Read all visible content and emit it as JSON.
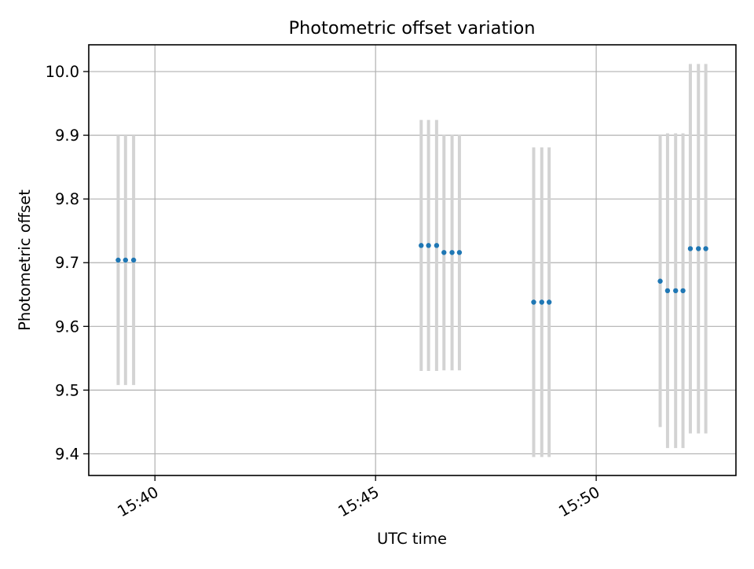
{
  "chart_data": {
    "type": "scatter",
    "title": "Photometric offset variation",
    "xlabel": "UTC time",
    "ylabel": "Photometric offset",
    "x_unit": "time",
    "x_tick_labels": [
      "15:40",
      "15:45",
      "15:50"
    ],
    "y_tick_labels": [
      "9.4",
      "9.5",
      "9.6",
      "9.7",
      "9.8",
      "9.9",
      "10.0"
    ],
    "xlim": [
      "15:38:30",
      "15:53:10"
    ],
    "ylim": [
      9.366,
      10.042
    ],
    "grid": true,
    "colors": {
      "point": "#1f77b4",
      "errorbar": "#d3d3d3",
      "grid": "#b0b0b0",
      "frame": "#000000"
    },
    "points": [
      {
        "x": "15:39:10",
        "y": 9.704,
        "yerr": 0.196
      },
      {
        "x": "15:39:20",
        "y": 9.704,
        "yerr": 0.196
      },
      {
        "x": "15:39:31",
        "y": 9.704,
        "yerr": 0.196
      },
      {
        "x": "15:46:02",
        "y": 9.727,
        "yerr": 0.197
      },
      {
        "x": "15:46:12",
        "y": 9.727,
        "yerr": 0.197
      },
      {
        "x": "15:46:23",
        "y": 9.727,
        "yerr": 0.197
      },
      {
        "x": "15:46:33",
        "y": 9.716,
        "yerr": 0.185
      },
      {
        "x": "15:46:44",
        "y": 9.716,
        "yerr": 0.185
      },
      {
        "x": "15:46:54",
        "y": 9.716,
        "yerr": 0.185
      },
      {
        "x": "15:48:35",
        "y": 9.638,
        "yerr": 0.243
      },
      {
        "x": "15:48:46",
        "y": 9.638,
        "yerr": 0.243
      },
      {
        "x": "15:48:56",
        "y": 9.638,
        "yerr": 0.243
      },
      {
        "x": "15:51:27",
        "y": 9.671,
        "yerr": 0.229
      },
      {
        "x": "15:51:37",
        "y": 9.656,
        "yerr": 0.247
      },
      {
        "x": "15:51:48",
        "y": 9.656,
        "yerr": 0.247
      },
      {
        "x": "15:51:58",
        "y": 9.656,
        "yerr": 0.247
      },
      {
        "x": "15:52:08",
        "y": 9.722,
        "yerr": 0.29
      },
      {
        "x": "15:52:19",
        "y": 9.722,
        "yerr": 0.29
      },
      {
        "x": "15:52:29",
        "y": 9.722,
        "yerr": 0.29
      }
    ]
  }
}
